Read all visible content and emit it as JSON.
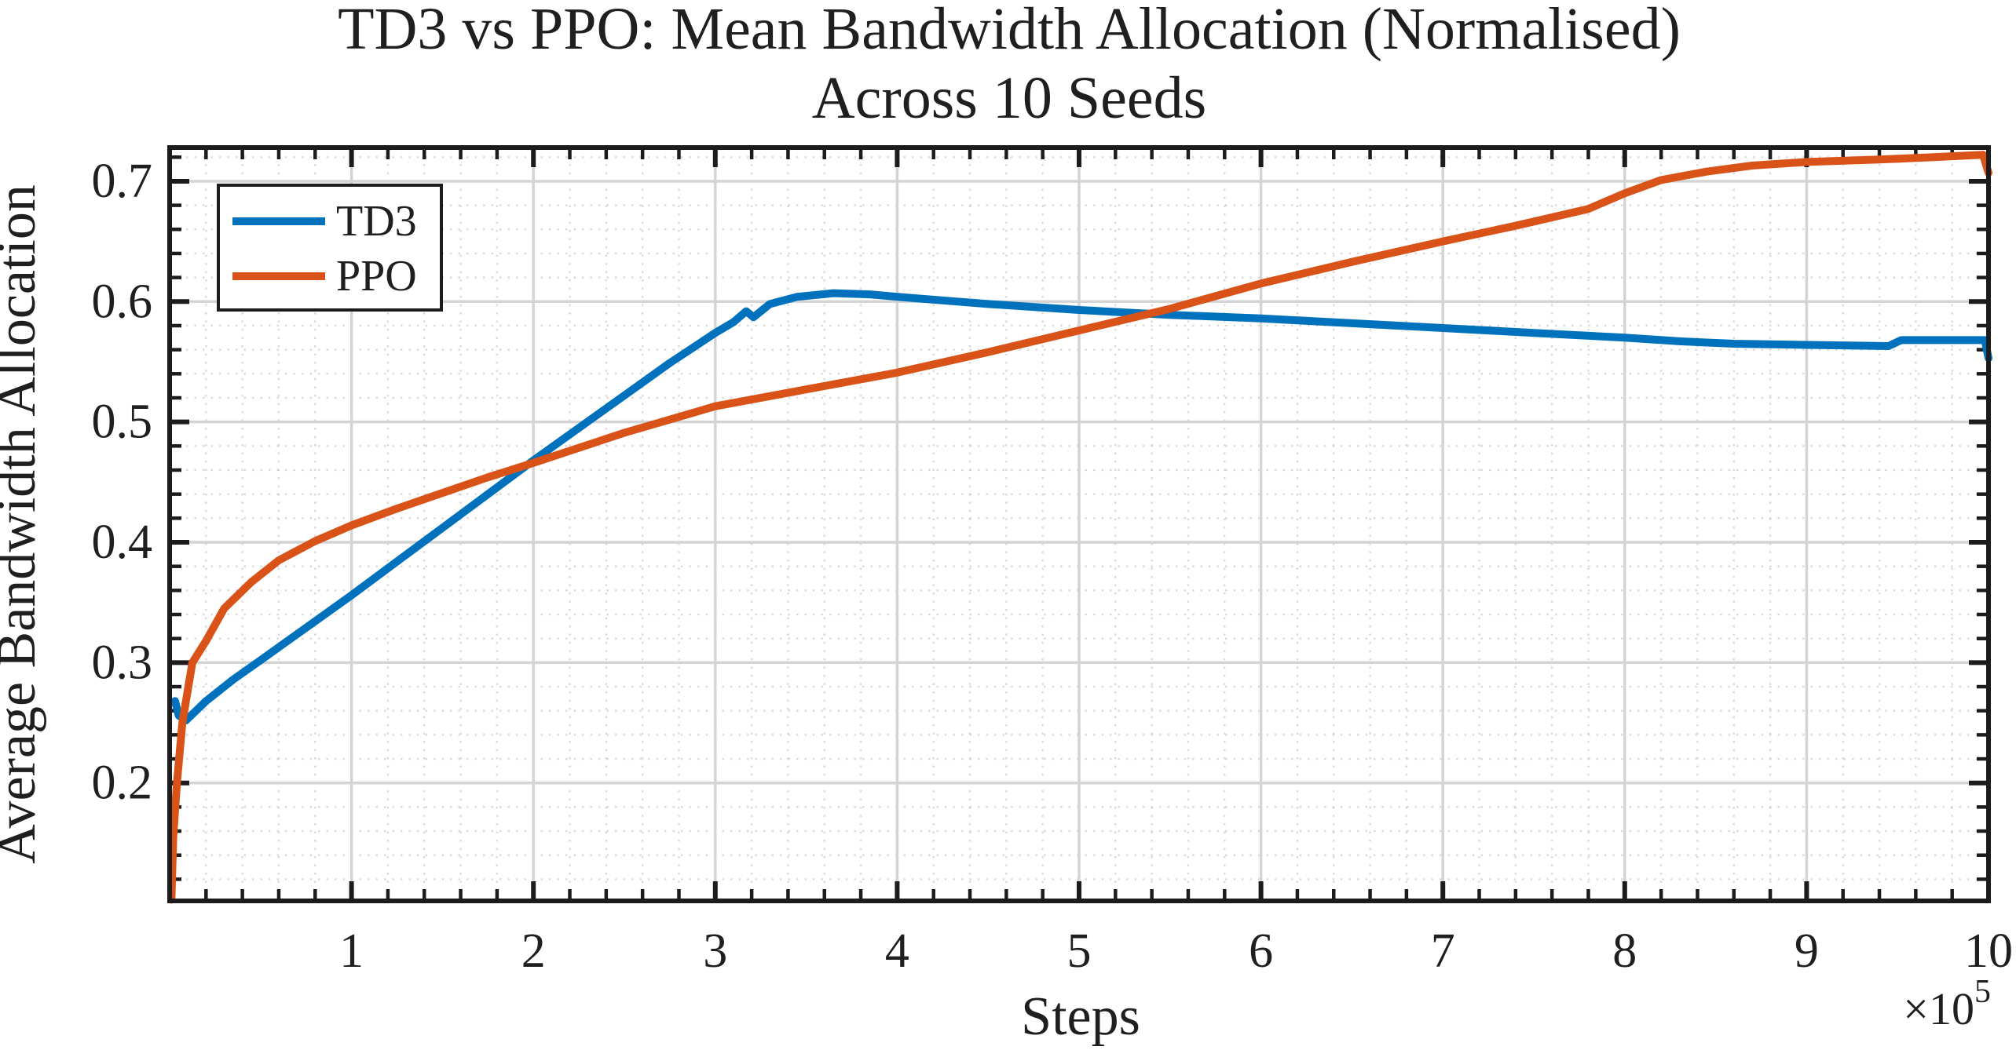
{
  "title": {
    "line1": "TD3 vs PPO: Mean Bandwidth Allocation (Normalised)",
    "line2": "Across 10 Seeds"
  },
  "axes": {
    "x_label": "Steps",
    "y_label": "Average Bandwidth Allocation",
    "x_offset_base": "×10",
    "x_offset_exp": "5"
  },
  "chart_data": {
    "type": "line",
    "title": "TD3 vs PPO: Mean Bandwidth Allocation (Normalised) Across 10 Seeds",
    "xlabel": "Steps",
    "ylabel": "Average Bandwidth Allocation",
    "x_scale_note": "x values in units of 1e5 steps (axis offset ×10^5)",
    "xlim": [
      0,
      10
    ],
    "ylim": [
      0.102,
      0.728
    ],
    "x_ticks": [
      1,
      2,
      3,
      4,
      5,
      6,
      7,
      8,
      9,
      10
    ],
    "y_ticks": [
      0.2,
      0.3,
      0.4,
      0.5,
      0.6,
      0.7
    ],
    "x_minor_step": 0.2,
    "y_minor_step": 0.02,
    "grid": {
      "major": "solid",
      "minor": "dotted"
    },
    "legend": {
      "position": "top-left",
      "entries": [
        "TD3",
        "PPO"
      ]
    },
    "colors": {
      "axis": "#1c1c1c",
      "major_grid": "#d4d4d4",
      "minor_grid": "#bbbbbb"
    },
    "series": [
      {
        "name": "TD3",
        "color": "#0072BD",
        "points": [
          [
            0.03,
            0.268
          ],
          [
            0.05,
            0.256
          ],
          [
            0.09,
            0.252
          ],
          [
            0.2,
            0.268
          ],
          [
            0.35,
            0.286
          ],
          [
            0.5,
            0.302
          ],
          [
            0.75,
            0.329
          ],
          [
            1.0,
            0.356
          ],
          [
            1.25,
            0.384
          ],
          [
            1.5,
            0.412
          ],
          [
            1.75,
            0.44
          ],
          [
            2.0,
            0.468
          ],
          [
            2.25,
            0.495
          ],
          [
            2.5,
            0.522
          ],
          [
            2.75,
            0.549
          ],
          [
            3.0,
            0.574
          ],
          [
            3.1,
            0.583
          ],
          [
            3.17,
            0.592
          ],
          [
            3.21,
            0.587
          ],
          [
            3.3,
            0.598
          ],
          [
            3.45,
            0.604
          ],
          [
            3.65,
            0.607
          ],
          [
            3.85,
            0.606
          ],
          [
            4.0,
            0.604
          ],
          [
            4.25,
            0.601
          ],
          [
            4.5,
            0.598
          ],
          [
            5.0,
            0.593
          ],
          [
            5.5,
            0.589
          ],
          [
            6.0,
            0.586
          ],
          [
            6.5,
            0.582
          ],
          [
            7.0,
            0.578
          ],
          [
            7.5,
            0.574
          ],
          [
            8.0,
            0.57
          ],
          [
            8.3,
            0.567
          ],
          [
            8.6,
            0.565
          ],
          [
            9.0,
            0.564
          ],
          [
            9.45,
            0.563
          ],
          [
            9.52,
            0.568
          ],
          [
            9.98,
            0.568
          ],
          [
            10.0,
            0.553
          ]
        ]
      },
      {
        "name": "PPO",
        "color": "#D95319",
        "points": [
          [
            0.01,
            0.103
          ],
          [
            0.02,
            0.155
          ],
          [
            0.04,
            0.2
          ],
          [
            0.07,
            0.25
          ],
          [
            0.125,
            0.3
          ],
          [
            0.2,
            0.318
          ],
          [
            0.3,
            0.345
          ],
          [
            0.45,
            0.367
          ],
          [
            0.6,
            0.385
          ],
          [
            0.8,
            0.401
          ],
          [
            1.0,
            0.414
          ],
          [
            1.25,
            0.428
          ],
          [
            1.5,
            0.441
          ],
          [
            1.75,
            0.454
          ],
          [
            2.0,
            0.466
          ],
          [
            2.5,
            0.491
          ],
          [
            3.0,
            0.513
          ],
          [
            3.5,
            0.527
          ],
          [
            4.0,
            0.541
          ],
          [
            4.5,
            0.558
          ],
          [
            5.0,
            0.576
          ],
          [
            5.5,
            0.594
          ],
          [
            6.0,
            0.615
          ],
          [
            6.5,
            0.633
          ],
          [
            7.0,
            0.65
          ],
          [
            7.4,
            0.663
          ],
          [
            7.8,
            0.677
          ],
          [
            8.0,
            0.69
          ],
          [
            8.2,
            0.701
          ],
          [
            8.45,
            0.708
          ],
          [
            8.7,
            0.713
          ],
          [
            9.0,
            0.716
          ],
          [
            9.4,
            0.718
          ],
          [
            9.7,
            0.72
          ],
          [
            9.97,
            0.722
          ],
          [
            10.0,
            0.707
          ]
        ]
      }
    ]
  }
}
